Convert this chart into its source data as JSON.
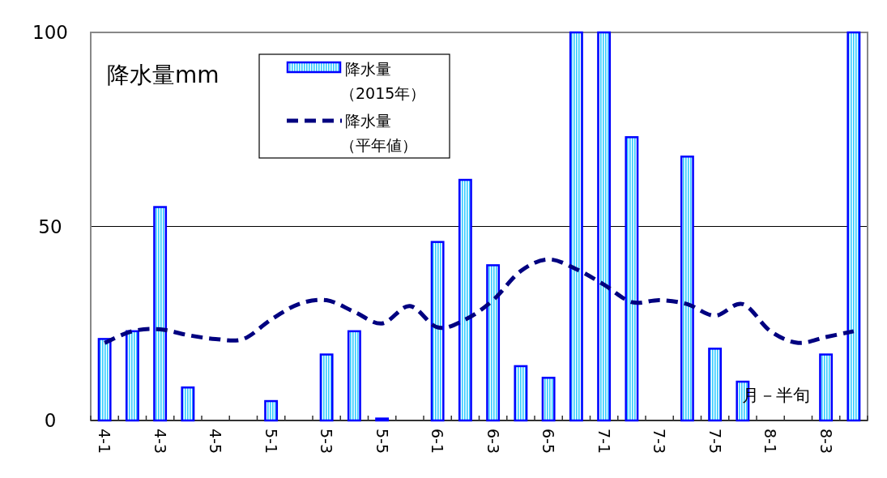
{
  "chart_data": {
    "type": "bar",
    "ylabel": "降水量mm",
    "xlabel": "月－半旬",
    "categories": [
      "4-1",
      null,
      "4-3",
      null,
      "4-5",
      null,
      "5-1",
      null,
      "5-3",
      null,
      "5-5",
      null,
      "6-1",
      null,
      "6-3",
      null,
      "6-5",
      null,
      "7-1",
      null,
      "7-3",
      null,
      "7-5",
      null,
      "8-1",
      null,
      "8-3",
      null
    ],
    "series": [
      {
        "name": "降水量（2015年）",
        "color": "#0000ff",
        "values": [
          21,
          23,
          55,
          8.5,
          0,
          0,
          5,
          0,
          17,
          23,
          0.5,
          0,
          46,
          62,
          40,
          14,
          11,
          100,
          100,
          73,
          0,
          68,
          18.5,
          10,
          0,
          0,
          17,
          100
        ]
      },
      {
        "name": "降水量（平年値）",
        "type": "line",
        "color": "#000080",
        "line_style": "dashed",
        "values": [
          20,
          23,
          23.5,
          22,
          21,
          21,
          26,
          30,
          31,
          28,
          25,
          29.5,
          24,
          26,
          31,
          38.5,
          41.5,
          39,
          35,
          30.5,
          31,
          30,
          27,
          30,
          23,
          20,
          21.5,
          23
        ]
      }
    ],
    "ylim": [
      0,
      100
    ],
    "yticks": [
      0,
      50,
      100
    ],
    "grid": "y",
    "legend": "top left",
    "marker": "none"
  }
}
